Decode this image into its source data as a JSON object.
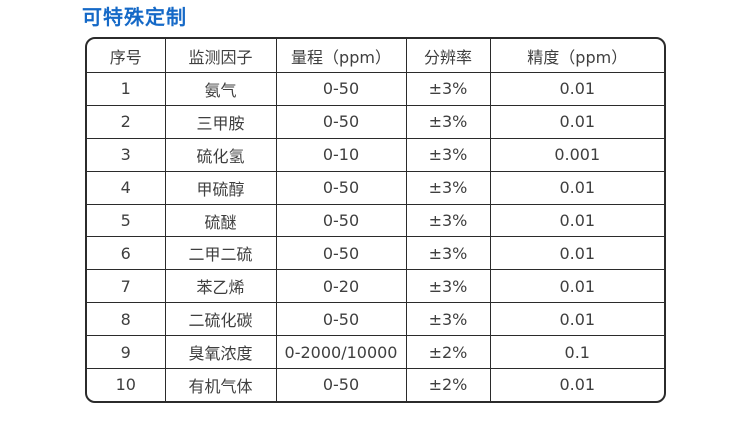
{
  "page": {
    "title": "可特殊定制",
    "title_color": "#1569c7",
    "border_color": "#2b2b2b",
    "text_color": "#3f3f3f",
    "background_color": "#ffffff"
  },
  "table": {
    "headers": [
      "序号",
      "监测因子",
      "量程（ppm）",
      "分辨率",
      "精度（ppm）"
    ],
    "rows": [
      [
        "1",
        "氨气",
        "0-50",
        "±3%",
        "0.01"
      ],
      [
        "2",
        "三甲胺",
        "0-50",
        "±3%",
        "0.01"
      ],
      [
        "3",
        "硫化氢",
        "0-10",
        "±3%",
        "0.001"
      ],
      [
        "4",
        "甲硫醇",
        "0-50",
        "±3%",
        "0.01"
      ],
      [
        "5",
        "硫醚",
        "0-50",
        "±3%",
        "0.01"
      ],
      [
        "6",
        "二甲二硫",
        "0-50",
        "±3%",
        "0.01"
      ],
      [
        "7",
        "苯乙烯",
        "0-20",
        "±3%",
        "0.01"
      ],
      [
        "8",
        "二硫化碳",
        "0-50",
        "±3%",
        "0.01"
      ],
      [
        "9",
        "臭氧浓度",
        "0-2000/10000",
        "±2%",
        "0.1"
      ],
      [
        "10",
        "有机气体",
        "0-50",
        "±2%",
        "0.01"
      ]
    ]
  }
}
